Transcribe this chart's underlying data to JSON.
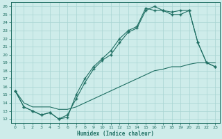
{
  "title": "",
  "xlabel": "Humidex (Indice chaleur)",
  "xlim": [
    -0.5,
    23.5
  ],
  "ylim": [
    11.5,
    26.5
  ],
  "yticks": [
    12,
    13,
    14,
    15,
    16,
    17,
    18,
    19,
    20,
    21,
    22,
    23,
    24,
    25,
    26
  ],
  "xticks": [
    0,
    1,
    2,
    3,
    4,
    5,
    6,
    7,
    8,
    9,
    10,
    11,
    12,
    13,
    14,
    15,
    16,
    17,
    18,
    19,
    20,
    21,
    22,
    23
  ],
  "bg_color": "#ceecea",
  "grid_color": "#a8d5d2",
  "line_color": "#1e6e62",
  "line1_x": [
    0,
    1,
    2,
    3,
    4,
    5,
    6,
    7,
    8,
    9,
    10,
    11,
    12,
    13,
    14,
    15,
    16,
    17,
    18,
    19,
    20,
    21,
    22,
    23
  ],
  "line1_y": [
    15.5,
    13.5,
    13.0,
    12.5,
    12.8,
    12.0,
    12.2,
    15.0,
    17.0,
    18.5,
    19.5,
    20.5,
    22.0,
    23.0,
    23.5,
    25.8,
    25.5,
    25.5,
    25.3,
    25.5,
    25.5,
    21.5,
    19.0,
    18.5
  ],
  "line2_x": [
    0,
    1,
    2,
    3,
    4,
    5,
    6,
    7,
    8,
    9,
    10,
    11,
    12,
    13,
    14,
    15,
    16,
    17,
    18,
    19,
    20,
    21,
    22,
    23
  ],
  "line2_y": [
    15.5,
    13.5,
    13.0,
    12.5,
    12.8,
    12.0,
    12.5,
    14.5,
    16.5,
    18.2,
    19.3,
    20.0,
    21.5,
    22.8,
    23.3,
    25.5,
    26.0,
    25.5,
    25.0,
    25.0,
    25.5,
    21.5,
    19.0,
    18.5
  ],
  "line3_x": [
    0,
    1,
    2,
    3,
    4,
    5,
    6,
    7,
    8,
    9,
    10,
    11,
    12,
    13,
    14,
    15,
    16,
    17,
    18,
    19,
    20,
    21,
    22,
    23
  ],
  "line3_y": [
    15.5,
    14.0,
    13.5,
    13.5,
    13.5,
    13.2,
    13.2,
    13.5,
    14.0,
    14.5,
    15.0,
    15.5,
    16.0,
    16.5,
    17.0,
    17.5,
    18.0,
    18.2,
    18.5,
    18.5,
    18.8,
    19.0,
    19.0,
    19.0
  ]
}
